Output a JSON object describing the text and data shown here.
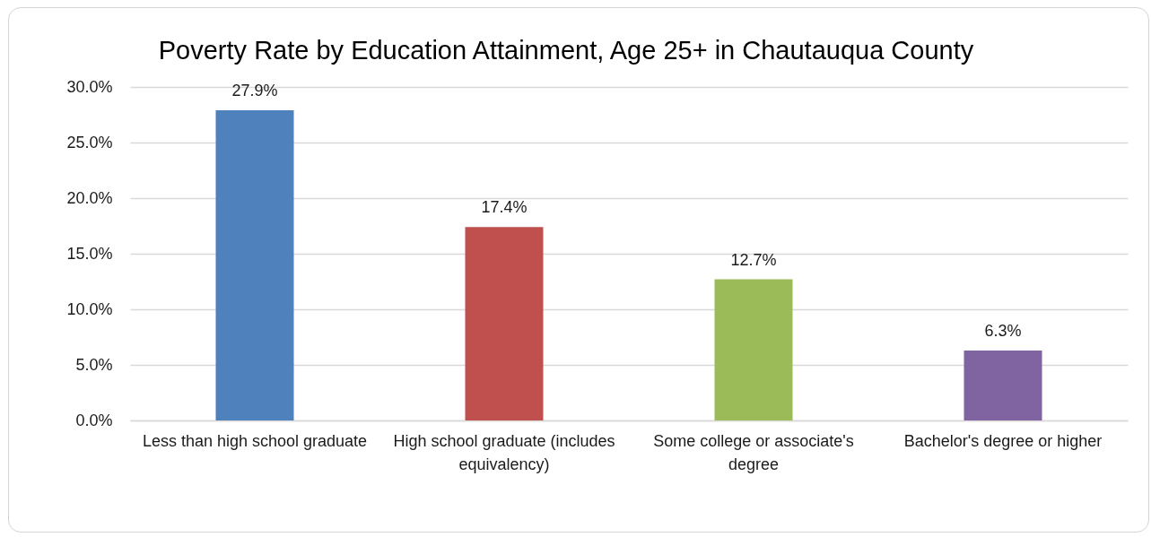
{
  "chart_data": {
    "type": "bar",
    "title": "Poverty Rate by Education Attainment, Age 25+ in Chautauqua County",
    "categories": [
      "Less than high school graduate",
      "High school graduate (includes equivalency)",
      "Some college or associate's degree",
      "Bachelor's degree or higher"
    ],
    "values": [
      27.9,
      17.4,
      12.7,
      6.3
    ],
    "colors": [
      "#4f81bd",
      "#c0504d",
      "#9bbb59",
      "#8064a2"
    ],
    "value_labels": [
      "27.9%",
      "17.4%",
      "12.7%",
      "6.3%"
    ],
    "ylim": [
      0,
      30
    ],
    "yticks": [
      {
        "value": 0,
        "label": "0.0%"
      },
      {
        "value": 5,
        "label": "5.0%"
      },
      {
        "value": 10,
        "label": "10.0%"
      },
      {
        "value": 15,
        "label": "15.0%"
      },
      {
        "value": 20,
        "label": "20.0%"
      },
      {
        "value": 25,
        "label": "25.0%"
      },
      {
        "value": 30,
        "label": "30.0%"
      }
    ],
    "grid": "y"
  }
}
